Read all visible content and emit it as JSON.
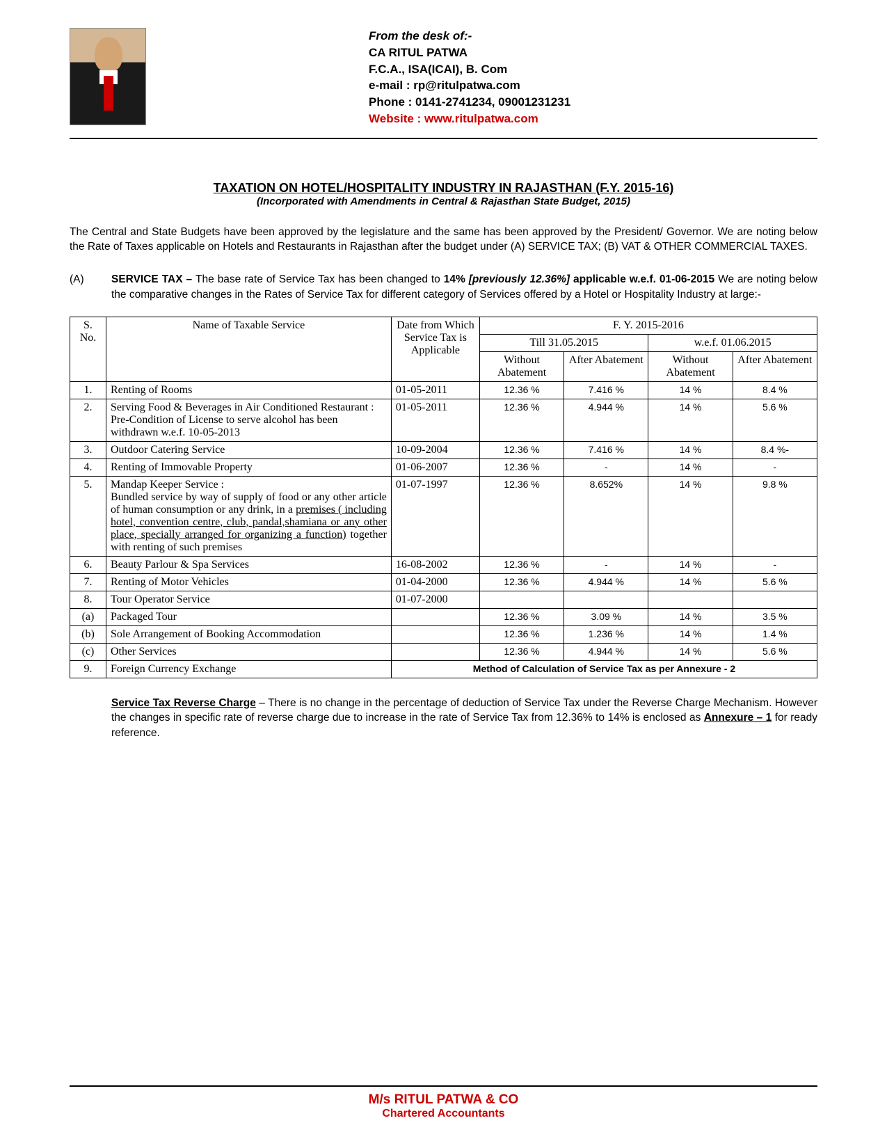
{
  "header": {
    "desk": "From the desk of:-",
    "name": "CA RITUL PATWA",
    "cred": "F.C.A., ISA(ICAI), B. Com",
    "email": "e-mail : rp@ritulpatwa.com",
    "phone": "Phone : 0141-2741234, 09001231231",
    "website": "Website : www.ritulpatwa.com"
  },
  "title": "TAXATION ON HOTEL/HOSPITALITY INDUSTRY IN RAJASTHAN (F.Y. 2015-16)",
  "subtitle": "(Incorporated with Amendments in Central & Rajasthan State Budget, 2015)",
  "intro": "The Central and State Budgets have been approved by the legislature and the same has been approved by the President/ Governor. We are noting below the Rate of Taxes applicable on Hotels and Restaurants in Rajasthan after the budget under (A) SERVICE TAX; (B) VAT & OTHER COMMERCIAL TAXES.",
  "sectionA": {
    "label": "(A)",
    "lead": "SERVICE TAX – ",
    "body1": "The base rate of Service Tax has been changed to ",
    "rate_new": "14%",
    "prev": " [previously 12.36%]",
    "body2": " applicable w.e.f. 01-06-2015",
    "body3": " We are noting below the comparative changes in the Rates of Service Tax for different category of Services offered by a Hotel or Hospitality Industry at large:-"
  },
  "table": {
    "headers": {
      "sno": "S. No.",
      "name": "Name of Taxable Service",
      "date": "Date from Which Service Tax is Applicable",
      "fy": "F. Y. 2015-2016",
      "till": "Till 31.05.2015",
      "wef": "w.e.f. 01.06.2015",
      "without": "Without Abatement",
      "after": "After Abatement"
    },
    "rows": [
      {
        "sno": "1.",
        "name": "Renting of Rooms",
        "date": "01-05-2011",
        "r1": "12.36 %",
        "r2": "7.416 %",
        "r3": "14 %",
        "r4": "8.4 %"
      },
      {
        "sno": "2.",
        "name": "Serving Food & Beverages in Air Conditioned Restaurant : Pre-Condition of License to serve alcohol has been withdrawn w.e.f. 10-05-2013",
        "date": "01-05-2011",
        "r1": "12.36 %",
        "r2": "4.944 %",
        "r3": "14 %",
        "r4": "5.6 %"
      },
      {
        "sno": "3.",
        "name": "Outdoor Catering Service",
        "date": "10-09-2004",
        "r1": "12.36 %",
        "r2": "7.416 %",
        "r3": "14 %",
        "r4": "8.4 %-"
      },
      {
        "sno": "4.",
        "name": "Renting of Immovable Property",
        "date": "01-06-2007",
        "r1": "12.36 %",
        "r2": "-",
        "r3": "14 %",
        "r4": "-"
      },
      {
        "sno": "5.",
        "name": "Mandap Keeper Service :",
        "name2": "Bundled service by way of supply of food or any other article of human consumption or any drink, in a ",
        "name_u": "premises ( including hotel, convention centre, club, pandal,shamiana or any other place, specially arranged for organizing a function)",
        "name3": " together with renting of such premises",
        "date": "01-07-1997",
        "r1": "12.36 %",
        "r2": "8.652%",
        "r3": "14 %",
        "r4": "9.8 %"
      },
      {
        "sno": "6.",
        "name": "Beauty Parlour & Spa Services",
        "date": "16-08-2002",
        "r1": "12.36 %",
        "r2": "-",
        "r3": "14 %",
        "r4": "-"
      },
      {
        "sno": "7.",
        "name": "Renting of Motor Vehicles",
        "date": "01-04-2000",
        "r1": "12.36 %",
        "r2": "4.944 %",
        "r3": "14 %",
        "r4": "5.6 %"
      },
      {
        "sno": "8.",
        "name": "Tour Operator Service",
        "date": "01-07-2000",
        "r1": "",
        "r2": "",
        "r3": "",
        "r4": ""
      },
      {
        "sno": "(a)",
        "name": "Packaged Tour",
        "date": "",
        "r1": "12.36 %",
        "r2": "3.09 %",
        "r3": "14 %",
        "r4": "3.5 %"
      },
      {
        "sno": "(b)",
        "name": "Sole Arrangement of Booking Accommodation",
        "date": "",
        "r1": "12.36 %",
        "r2": "1.236 %",
        "r3": "14 %",
        "r4": "1.4 %",
        "justify": true
      },
      {
        "sno": "(c)",
        "name": "Other Services",
        "date": "",
        "r1": "12.36 %",
        "r2": "4.944 %",
        "r3": "14 %",
        "r4": "5.6 %"
      },
      {
        "sno": "9.",
        "name": "Foreign Currency Exchange",
        "merged": "Method of Calculation of Service Tax as per Annexure - 2"
      }
    ]
  },
  "reverseCharge": {
    "lead": "Service Tax Reverse Charge",
    "body": " – There is no change in the percentage of deduction of Service Tax under the Reverse Charge Mechanism. However the changes in specific rate of reverse charge due to increase in the rate of Service Tax from 12.36% to 14% is enclosed as ",
    "annex": "Annexure – 1",
    "tail": " for ready reference."
  },
  "footer": {
    "firm": "M/s RITUL PATWA & CO",
    "sub": "Chartered Accountants"
  }
}
